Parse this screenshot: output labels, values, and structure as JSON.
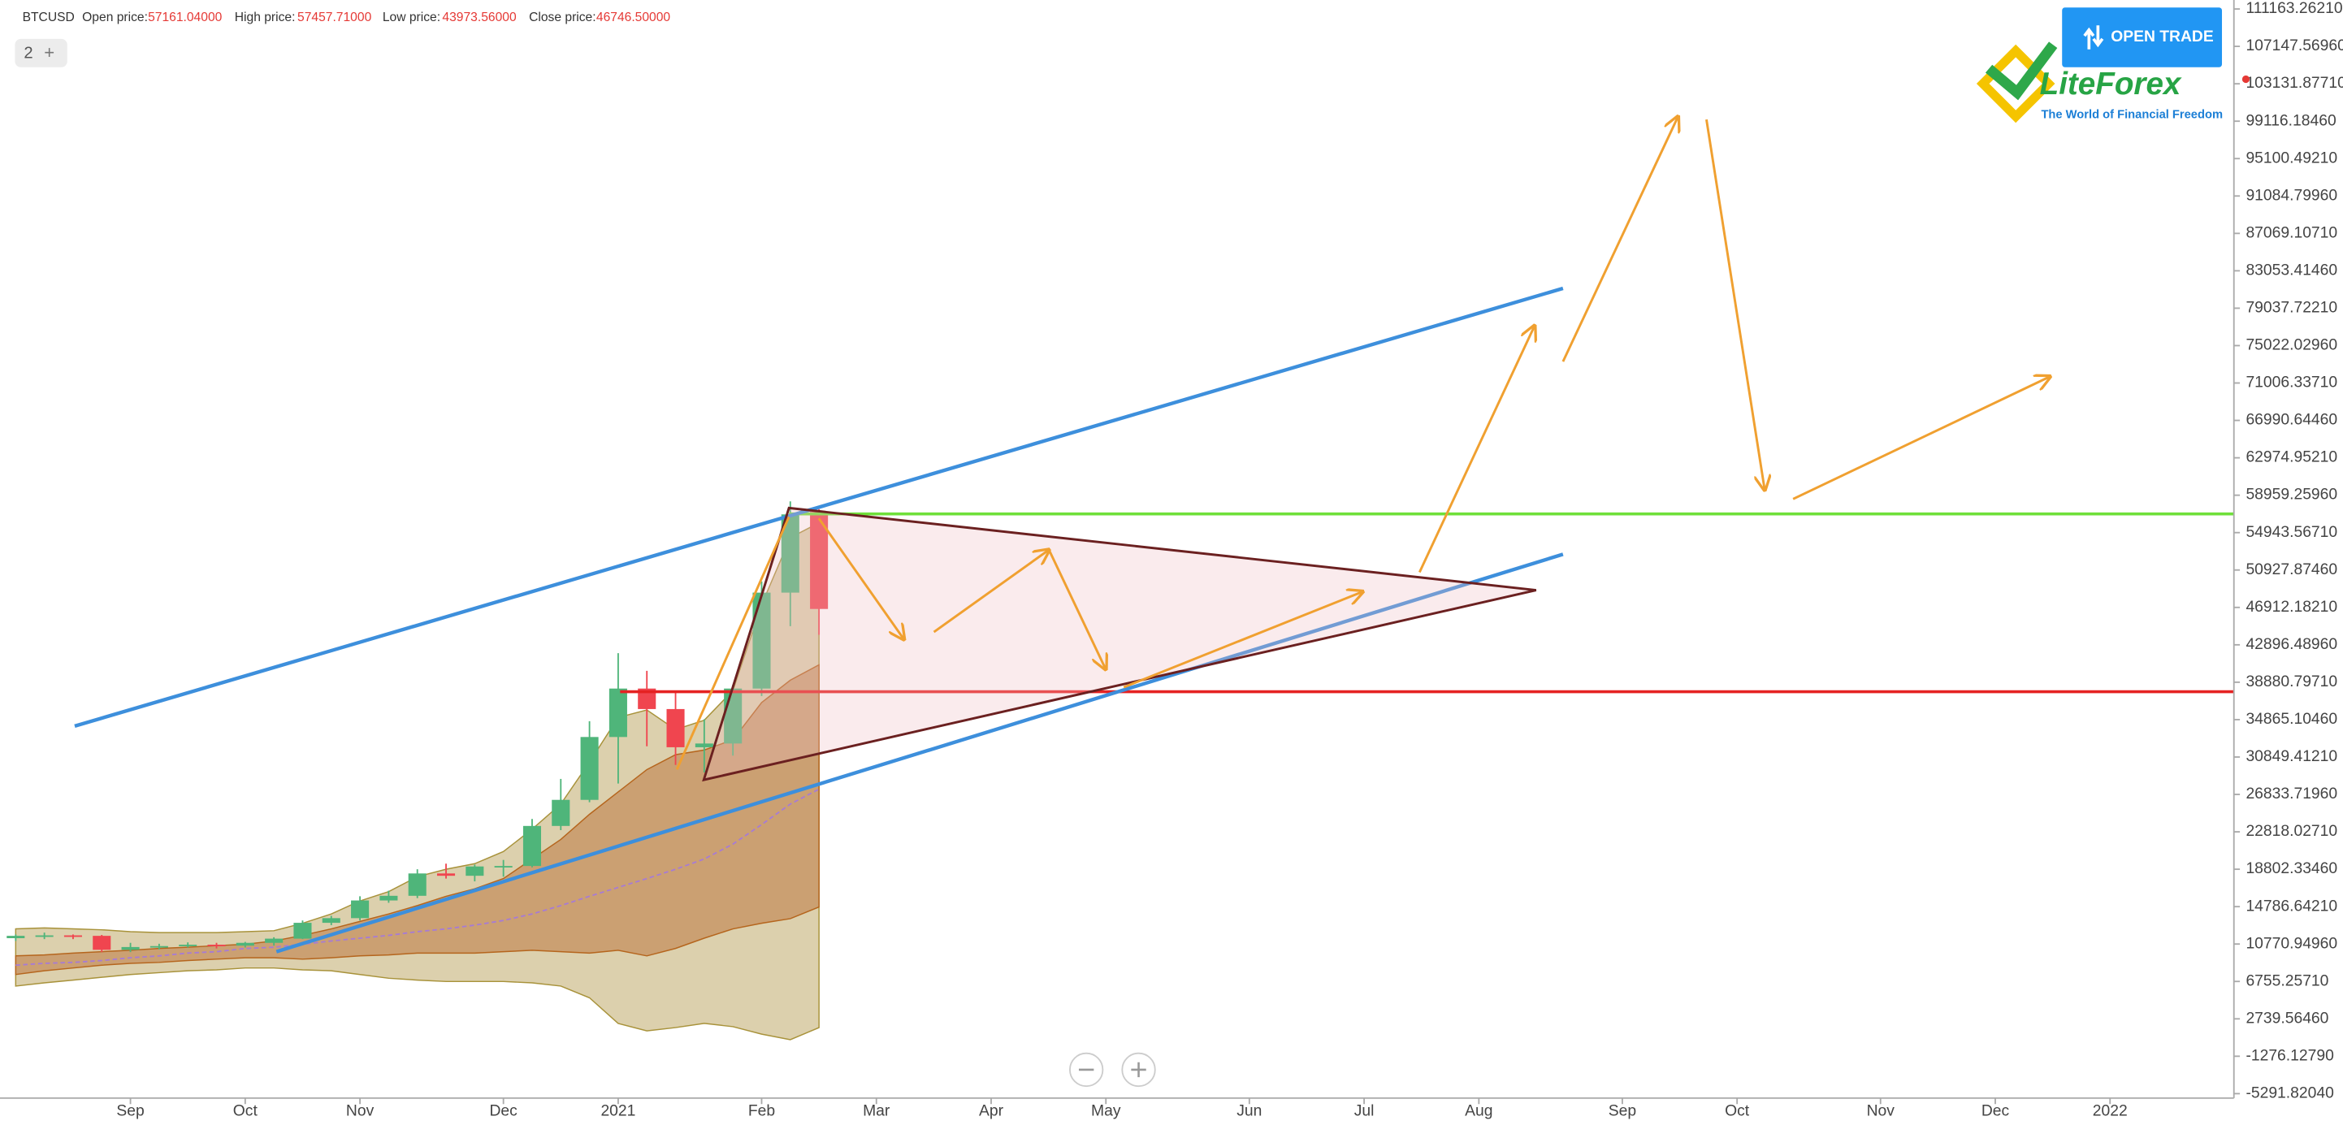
{
  "chart_data": {
    "type": "candlestick",
    "header": {
      "symbol": "BTCUSD",
      "fields": [
        {
          "label": "Open price:",
          "value": "57161.04000"
        },
        {
          "label": "High price:",
          "value": "57457.71000"
        },
        {
          "label": "Low price:",
          "value": "43973.56000"
        },
        {
          "label": "Close price:",
          "value": "46746.50000"
        }
      ]
    },
    "layout_button": {
      "count": "2",
      "add": "+"
    },
    "open_trade": "OPEN TRADE",
    "logo": {
      "name": "LiteForex",
      "tagline": "The World of Financial Freedom"
    },
    "categories": [
      null,
      null,
      null,
      null,
      "Sep",
      null,
      null,
      null,
      "Oct",
      null,
      null,
      null,
      "Nov",
      null,
      null,
      null,
      null,
      "Dec",
      null,
      null,
      null,
      "2021",
      null,
      null,
      null,
      null,
      "Feb",
      null,
      null,
      null,
      "Mar",
      null,
      null,
      null,
      "Apr",
      null,
      null,
      null,
      "May",
      null,
      null,
      null,
      null,
      "Jun",
      null,
      null,
      null,
      "Jul",
      null,
      null,
      null,
      "Aug",
      null,
      null,
      null,
      null,
      "Sep",
      null,
      null,
      null,
      "Oct",
      null,
      null,
      null,
      null,
      "Nov",
      null,
      null,
      null,
      "Dec",
      null,
      null,
      null,
      "2022",
      null,
      null,
      null
    ],
    "open": [
      11400,
      11650,
      11700,
      11650,
      10150,
      10450,
      10550,
      10700,
      10600,
      10900,
      11350,
      13050,
      13550,
      15450,
      15950,
      18350,
      18100,
      19100,
      19150,
      23450,
      26250,
      33000,
      38200,
      36000,
      31900,
      32300,
      38200,
      48500,
      57161.04,
      null,
      null,
      null,
      null,
      null,
      null,
      null,
      null,
      null,
      null,
      null,
      null,
      null,
      null,
      null,
      null,
      null,
      null,
      null,
      null,
      null,
      null,
      null,
      null,
      null,
      null,
      null,
      null,
      null,
      null,
      null,
      null,
      null,
      null,
      null,
      null,
      null,
      null,
      null,
      null,
      null,
      null,
      null,
      null,
      null,
      null,
      null,
      null
    ],
    "high": [
      11800,
      12000,
      11800,
      11750,
      10900,
      10800,
      10950,
      10900,
      11000,
      11500,
      13300,
      13800,
      15900,
      16500,
      18800,
      19400,
      19300,
      19800,
      24200,
      28500,
      34700,
      42000,
      40100,
      37800,
      34900,
      38600,
      49700,
      58300,
      57457.71,
      null,
      null,
      null,
      null,
      null,
      null,
      null,
      null,
      null,
      null,
      null,
      null,
      null,
      null,
      null,
      null,
      null,
      null,
      null,
      null,
      null,
      null,
      null,
      null,
      null,
      null,
      null,
      null,
      null,
      null,
      null,
      null,
      null,
      null,
      null,
      null,
      null,
      null,
      null,
      null,
      null,
      null,
      null,
      null,
      null,
      null,
      null,
      null
    ],
    "low": [
      11100,
      11300,
      11300,
      9900,
      9900,
      10200,
      10400,
      10300,
      10400,
      10600,
      11300,
      12800,
      13300,
      15200,
      15700,
      17800,
      17500,
      18000,
      19000,
      23000,
      26000,
      28000,
      32000,
      30000,
      29200,
      31000,
      37400,
      44900,
      43973.56,
      null,
      null,
      null,
      null,
      null,
      null,
      null,
      null,
      null,
      null,
      null,
      null,
      null,
      null,
      null,
      null,
      null,
      null,
      null,
      null,
      null,
      null,
      null,
      null,
      null,
      null,
      null,
      null,
      null,
      null,
      null,
      null,
      null,
      null,
      null,
      null,
      null,
      null,
      null,
      null,
      null,
      null,
      null,
      null,
      null,
      null,
      null,
      null
    ],
    "close": [
      11650,
      11700,
      11650,
      10150,
      10450,
      10550,
      10700,
      10600,
      10900,
      11350,
      13050,
      13550,
      15450,
      15950,
      18350,
      18100,
      19100,
      19150,
      23450,
      26250,
      33000,
      38200,
      36000,
      31900,
      32300,
      38200,
      48500,
      56900,
      46746.5,
      null,
      null,
      null,
      null,
      null,
      null,
      null,
      null,
      null,
      null,
      null,
      null,
      null,
      null,
      null,
      null,
      null,
      null,
      null,
      null,
      null,
      null,
      null,
      null,
      null,
      null,
      null,
      null,
      null,
      null,
      null,
      null,
      null,
      null,
      null,
      null,
      null,
      null,
      null,
      null,
      null,
      null,
      null,
      null,
      null,
      null,
      null,
      null
    ],
    "up_color": "#4fb57a",
    "down_color": "#f0454f",
    "bands": [
      {
        "color": "#d8cba4",
        "stroke": "#a8923a",
        "upper": [
          12400,
          12500,
          12400,
          12300,
          12100,
          12000,
          12000,
          12000,
          12100,
          12200,
          13000,
          14000,
          15400,
          16400,
          18000,
          18800,
          19400,
          20700,
          23100,
          25800,
          30300,
          35100,
          35900,
          33800,
          34800,
          38000,
          47200,
          54400,
          56000,
          null,
          null,
          null,
          null,
          null,
          null,
          null,
          null,
          null,
          null,
          null,
          null,
          null,
          null,
          null,
          null,
          null,
          null,
          null,
          null,
          null,
          null,
          null,
          null,
          null,
          null,
          null,
          null,
          null,
          null,
          null,
          null,
          null,
          null,
          null,
          null,
          null,
          null,
          null,
          null,
          null,
          null,
          null,
          null,
          null,
          null,
          null,
          null
        ],
        "lower": [
          6260,
          6600,
          6900,
          7200,
          7500,
          7700,
          7900,
          8000,
          8200,
          8200,
          8000,
          7900,
          7500,
          7100,
          6900,
          6750,
          6750,
          6750,
          6600,
          6260,
          5000,
          2250,
          1450,
          1800,
          2250,
          1900,
          1100,
          500,
          1800,
          null,
          null,
          null,
          null,
          null,
          null,
          null,
          null,
          null,
          null,
          null,
          null,
          null,
          null,
          null,
          null,
          null,
          null,
          null,
          null,
          null,
          null,
          null,
          null,
          null,
          null,
          null,
          null,
          null,
          null,
          null,
          null,
          null,
          null,
          null,
          null,
          null,
          null,
          null,
          null,
          null,
          null,
          null,
          null,
          null,
          null,
          null,
          null
        ]
      },
      {
        "color": "#c99a6c",
        "stroke": "#b5651d",
        "upper": [
          9500,
          9600,
          9800,
          9950,
          10100,
          10300,
          10430,
          10600,
          10750,
          11100,
          11700,
          12400,
          13200,
          14000,
          14900,
          15900,
          16700,
          17800,
          19900,
          22000,
          24700,
          27100,
          29500,
          31100,
          31600,
          32700,
          36700,
          39100,
          40750,
          null,
          null,
          null,
          null,
          null,
          null,
          null,
          null,
          null,
          null,
          null,
          null,
          null,
          null,
          null,
          null,
          null,
          null,
          null,
          null,
          null,
          null,
          null,
          null,
          null,
          null,
          null,
          null,
          null,
          null,
          null,
          null,
          null,
          null,
          null,
          null,
          null,
          null,
          null,
          null,
          null,
          null,
          null,
          null,
          null,
          null,
          null,
          null
        ],
        "lower": [
          7500,
          7900,
          8200,
          8500,
          8700,
          8800,
          9000,
          9150,
          9300,
          9300,
          9150,
          9300,
          9500,
          9600,
          9800,
          9800,
          9800,
          9950,
          10100,
          9950,
          9800,
          10100,
          9500,
          10300,
          11400,
          12400,
          13000,
          13500,
          14750,
          null,
          null,
          null,
          null,
          null,
          null,
          null,
          null,
          null,
          null,
          null,
          null,
          null,
          null,
          null,
          null,
          null,
          null,
          null,
          null,
          null,
          null,
          null,
          null,
          null,
          null,
          null,
          null,
          null,
          null,
          null,
          null,
          null,
          null,
          null,
          null,
          null,
          null,
          null,
          null,
          null,
          null,
          null,
          null,
          null,
          null,
          null,
          null
        ]
      }
    ],
    "ma": {
      "color": "#a77bd4",
      "values": [
        8500,
        8700,
        8800,
        9000,
        9300,
        9500,
        9800,
        9950,
        10300,
        10430,
        10750,
        11100,
        11400,
        11700,
        12100,
        12400,
        12800,
        13300,
        14000,
        14900,
        15900,
        16850,
        17800,
        18800,
        19900,
        21500,
        23600,
        25800,
        27400,
        null,
        null,
        null,
        null,
        null,
        null,
        null,
        null,
        null,
        null,
        null,
        null,
        null,
        null,
        null,
        null,
        null,
        null,
        null,
        null,
        null,
        null,
        null,
        null,
        null,
        null,
        null,
        null,
        null,
        null,
        null,
        null,
        null,
        null,
        null,
        null,
        null,
        null,
        null,
        null,
        null,
        null,
        null,
        null,
        null,
        null,
        null,
        null
      ]
    },
    "levels": [
      {
        "value": 56950,
        "color": "#6fe03a"
      },
      {
        "value": 37860,
        "color": "#e52222"
      }
    ],
    "ylim": [
      -5770,
      112126
    ],
    "yticks": [
      {
        "value": 111163.2621,
        "label": "111163.26210"
      },
      {
        "value": 107147.5696,
        "label": "107147.56960"
      },
      {
        "value": 103131.8771,
        "label": "103131.87710"
      },
      {
        "value": 99116.1846,
        "label": "99116.18460"
      },
      {
        "value": 95100.4921,
        "label": "95100.49210"
      },
      {
        "value": 91084.7996,
        "label": "91084.79960"
      },
      {
        "value": 87069.1071,
        "label": "87069.10710"
      },
      {
        "value": 83053.4146,
        "label": "83053.41460"
      },
      {
        "value": 79037.7221,
        "label": "79037.72210"
      },
      {
        "value": 75022.0296,
        "label": "75022.02960"
      },
      {
        "value": 71006.3371,
        "label": "71006.33710"
      },
      {
        "value": 66990.6446,
        "label": "66990.64460"
      },
      {
        "value": 62974.9521,
        "label": "62974.95210"
      },
      {
        "value": 58959.2596,
        "label": "58959.25960"
      },
      {
        "value": 54943.5671,
        "label": "54943.56710"
      },
      {
        "value": 50927.8746,
        "label": "50927.87460"
      },
      {
        "value": 46912.1821,
        "label": "46912.18210"
      },
      {
        "value": 42896.4896,
        "label": "42896.48960"
      },
      {
        "value": 38880.7971,
        "label": "38880.79710"
      },
      {
        "value": 34865.1046,
        "label": "34865.10460"
      },
      {
        "value": 30849.4121,
        "label": "30849.41210"
      },
      {
        "value": 26833.7196,
        "label": "26833.71960"
      },
      {
        "value": 22818.0271,
        "label": "22818.02710"
      },
      {
        "value": 18802.3346,
        "label": "18802.33460"
      },
      {
        "value": 14786.6421,
        "label": "14786.64210"
      },
      {
        "value": 10770.9496,
        "label": "10770.94960"
      },
      {
        "value": 6755.2571,
        "label": "6755.25710"
      },
      {
        "value": 2739.5646,
        "label": "2739.56460"
      },
      {
        "value": -1276.1279,
        "label": "-1276.12790"
      },
      {
        "value": -5291.8204,
        "label": "-5291.82040"
      }
    ]
  }
}
